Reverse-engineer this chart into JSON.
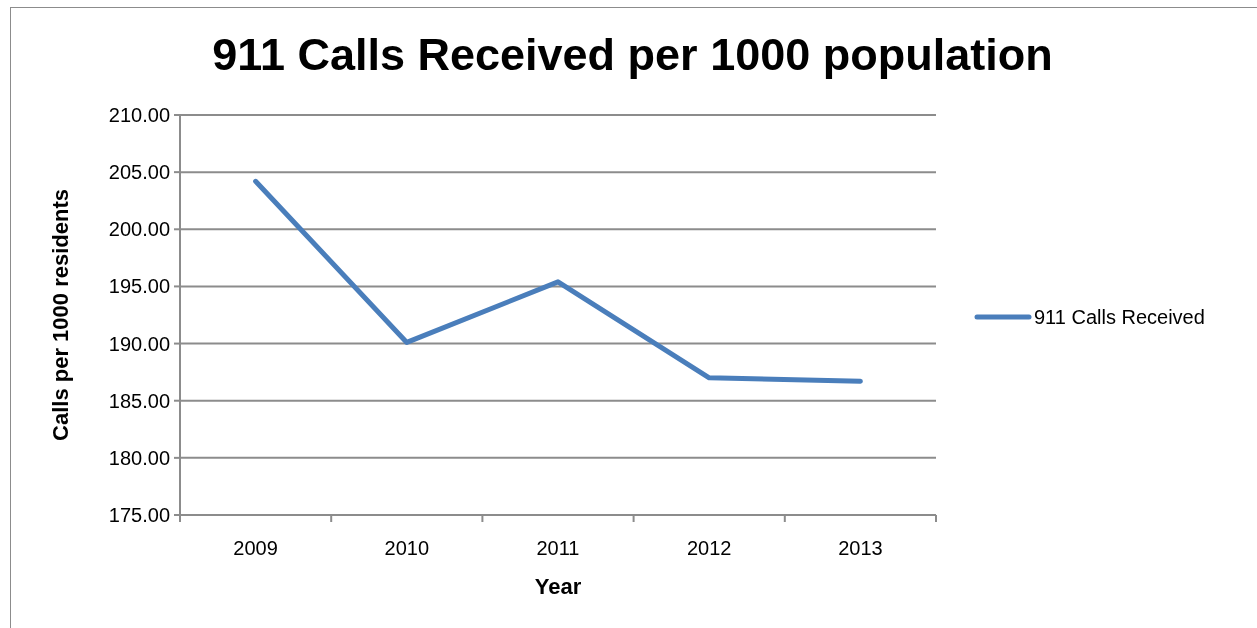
{
  "chart_data": {
    "type": "line",
    "title": "911 Calls Received per 1000 population",
    "xlabel": "Year",
    "ylabel": "Calls per 1000 residents",
    "categories": [
      "2009",
      "2010",
      "2011",
      "2012",
      "2013"
    ],
    "series": [
      {
        "name": "911 Calls Received",
        "color": "#4a7ebb",
        "values": [
          204.2,
          190.1,
          195.4,
          187.0,
          186.7
        ]
      }
    ],
    "ylim": [
      175,
      210
    ],
    "yticks": [
      {
        "value": 175,
        "label": "175.00"
      },
      {
        "value": 180,
        "label": "180.00"
      },
      {
        "value": 185,
        "label": "185.00"
      },
      {
        "value": 190,
        "label": "190.00"
      },
      {
        "value": 195,
        "label": "195.00"
      },
      {
        "value": 200,
        "label": "200.00"
      },
      {
        "value": 205,
        "label": "205.00"
      },
      {
        "value": 210,
        "label": "210.00"
      }
    ],
    "grid": "y",
    "legend": "right",
    "marker": "none",
    "line_style": "solid"
  }
}
